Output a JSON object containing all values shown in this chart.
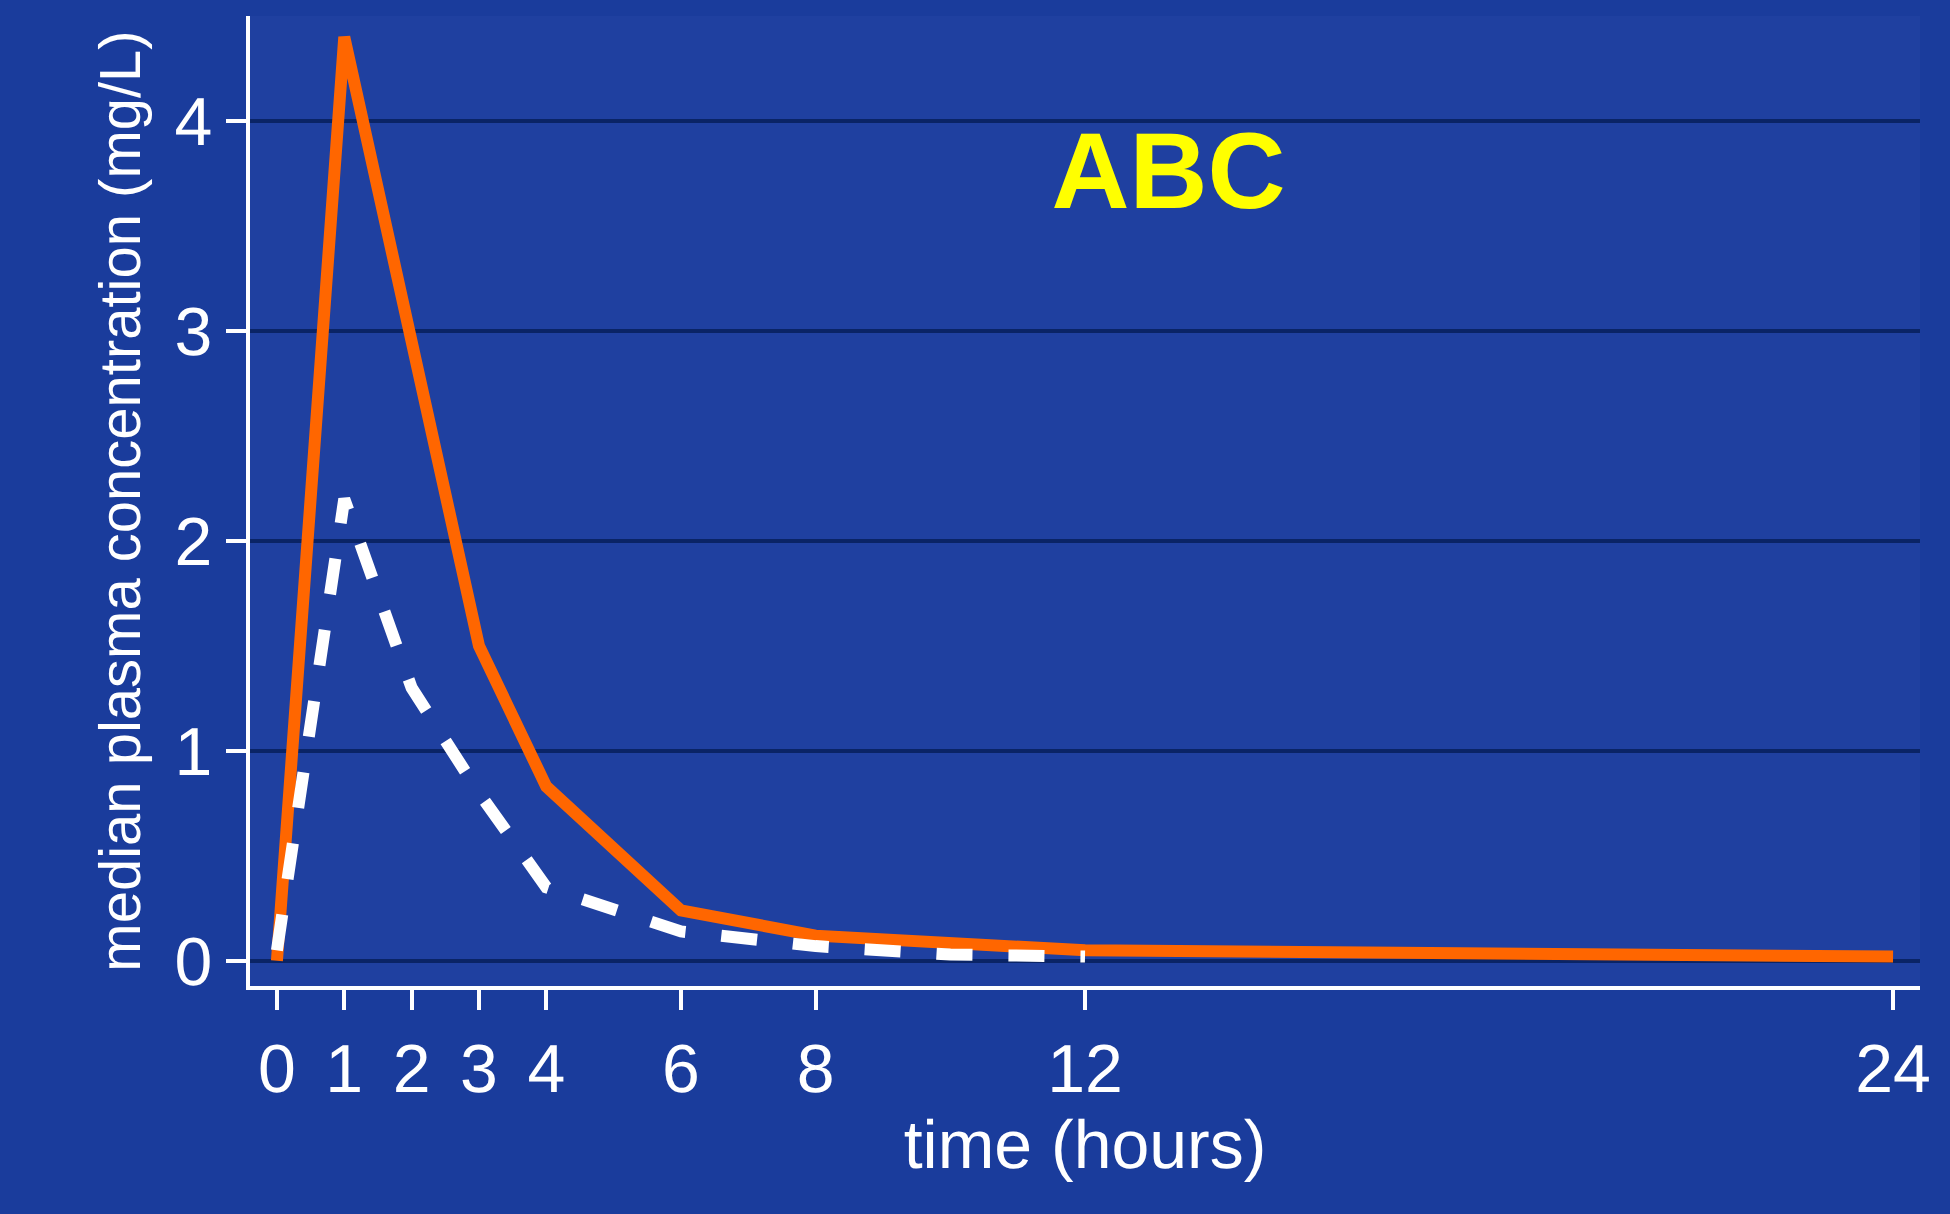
{
  "chart_data": {
    "type": "line",
    "title": "ABC",
    "xlabel": "time (hours)",
    "ylabel": "median plasma concentration (mg/L)",
    "xlim": [
      -0.4,
      24.4
    ],
    "xticks": [
      0,
      1,
      2,
      3,
      4,
      6,
      8,
      12,
      24
    ],
    "ylim": [
      -0.12,
      4.5
    ],
    "yticks": [
      0,
      1,
      2,
      3,
      4
    ],
    "grid": "y",
    "marker": "none",
    "series": [
      {
        "color": "#ff6600",
        "line_style": "solid",
        "x": [
          0,
          1,
          2,
          3,
          4,
          6,
          8,
          12,
          24
        ],
        "values": [
          0,
          4.4,
          2.95,
          1.5,
          0.83,
          0.24,
          0.12,
          0.05,
          0.02
        ]
      },
      {
        "color": "#ffffff",
        "line_style": "dashed",
        "x": [
          0,
          1,
          2,
          3,
          4,
          6,
          8,
          10,
          12
        ],
        "values": [
          0.05,
          2.2,
          1.3,
          0.8,
          0.35,
          0.14,
          0.07,
          0.03,
          0.02
        ]
      }
    ]
  }
}
